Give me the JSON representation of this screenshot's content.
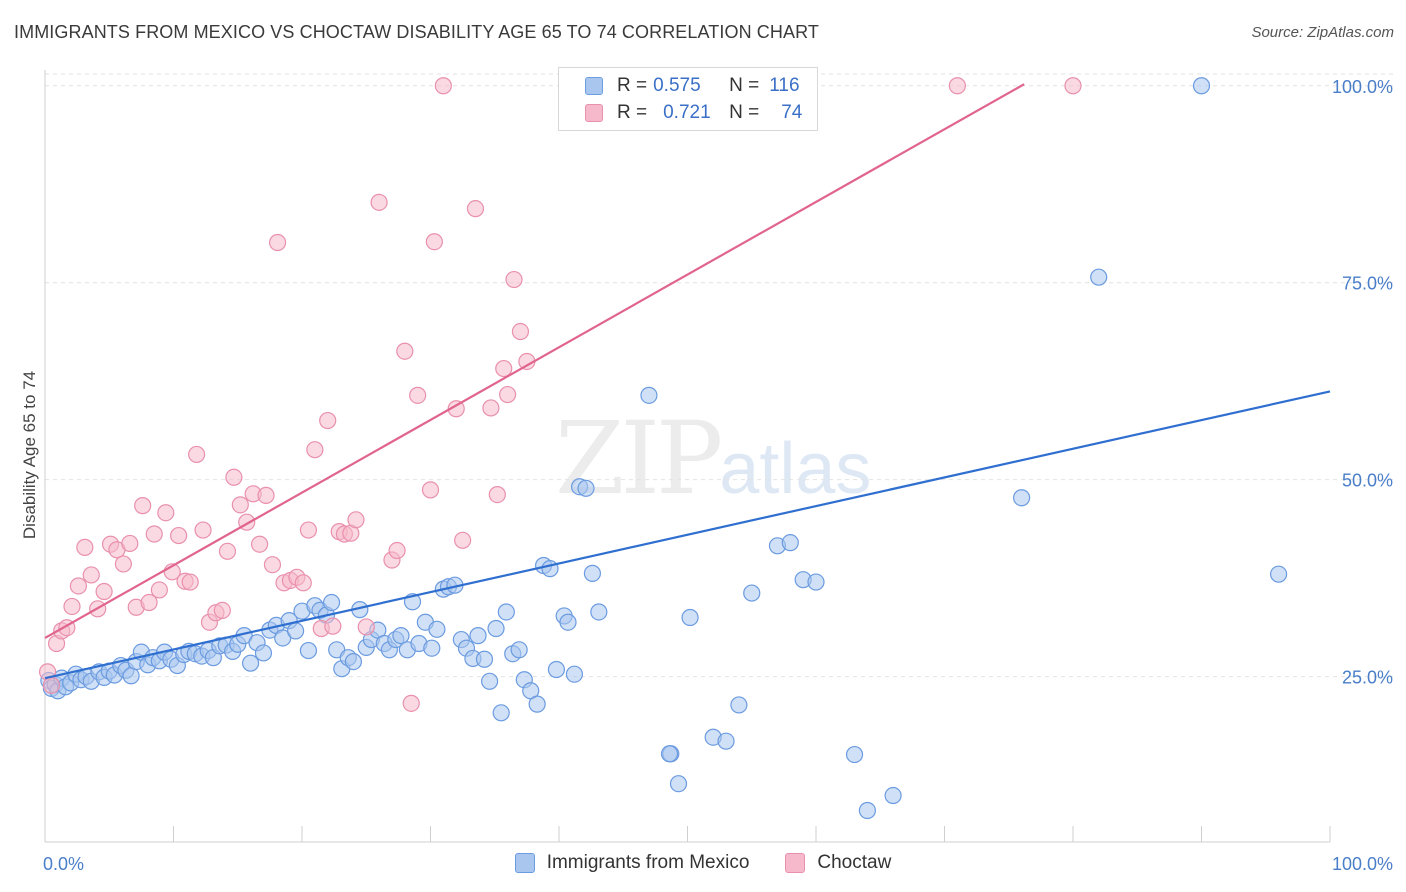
{
  "header": {
    "title": "IMMIGRANTS FROM MEXICO VS CHOCTAW DISABILITY AGE 65 TO 74 CORRELATION CHART",
    "source": "Source: ZipAtlas.com"
  },
  "watermark": {
    "zip": "ZIP",
    "atlas": "atlas"
  },
  "colors": {
    "mexico_fill": "#a9c6ef",
    "mexico_stroke": "#6b9be0",
    "mexico_line": "#2f6fcf",
    "choctaw_fill": "#f5b9cb",
    "choctaw_stroke": "#e990ad",
    "choctaw_line": "#e0648e",
    "tick_label": "#4a7ec9"
  },
  "legend_top": [
    {
      "r_label": "R =",
      "r_value": "0.575",
      "n_label": "N =",
      "n_value": "116"
    },
    {
      "r_label": "R =",
      "r_value": "0.721",
      "n_label": "N =",
      "n_value": "74"
    }
  ],
  "legend_bottom": [
    "Immigrants from Mexico",
    "Choctaw"
  ],
  "chart_data": {
    "type": "scatter",
    "title": "IMMIGRANTS FROM MEXICO VS CHOCTAW DISABILITY AGE 65 TO 74 CORRELATION CHART",
    "xlabel": "",
    "ylabel": "Disability Age 65 to 74",
    "xlim": [
      0,
      100
    ],
    "ylim": [
      4,
      102
    ],
    "x_tick_labels": [
      "0.0%",
      "100.0%"
    ],
    "y_ticks": [
      25,
      50,
      75,
      100
    ],
    "y_tick_labels": [
      "25.0%",
      "50.0%",
      "75.0%",
      "100.0%"
    ],
    "grid": "horizontal dashed",
    "legend_placement": "bottom-center",
    "series": [
      {
        "name": "Immigrants from Mexico",
        "R": 0.575,
        "N": 116,
        "trend": {
          "x": [
            0,
            100
          ],
          "y": [
            24.8,
            61.2
          ]
        },
        "points": [
          [
            0.3,
            24.5
          ],
          [
            0.5,
            23.5
          ],
          [
            0.8,
            24.0
          ],
          [
            1.0,
            23.2
          ],
          [
            1.3,
            24.8
          ],
          [
            1.6,
            23.7
          ],
          [
            2.0,
            24.2
          ],
          [
            2.4,
            25.3
          ],
          [
            2.8,
            24.6
          ],
          [
            3.2,
            25.0
          ],
          [
            3.6,
            24.4
          ],
          [
            4.2,
            25.6
          ],
          [
            4.6,
            24.9
          ],
          [
            5.0,
            25.7
          ],
          [
            5.4,
            25.2
          ],
          [
            5.9,
            26.4
          ],
          [
            6.3,
            25.8
          ],
          [
            6.7,
            25.1
          ],
          [
            7.1,
            26.9
          ],
          [
            7.5,
            28.1
          ],
          [
            8.0,
            26.5
          ],
          [
            8.4,
            27.4
          ],
          [
            8.9,
            27.0
          ],
          [
            9.3,
            28.1
          ],
          [
            9.8,
            27.2
          ],
          [
            10.3,
            26.4
          ],
          [
            10.8,
            27.8
          ],
          [
            11.2,
            28.2
          ],
          [
            11.7,
            27.9
          ],
          [
            12.2,
            27.6
          ],
          [
            12.7,
            28.3
          ],
          [
            13.1,
            27.4
          ],
          [
            13.6,
            28.9
          ],
          [
            14.1,
            29.0
          ],
          [
            14.6,
            28.2
          ],
          [
            15.0,
            29.1
          ],
          [
            15.5,
            30.2
          ],
          [
            16.0,
            26.7
          ],
          [
            16.5,
            29.3
          ],
          [
            17.0,
            28.0
          ],
          [
            17.5,
            30.9
          ],
          [
            18.0,
            31.5
          ],
          [
            18.5,
            29.9
          ],
          [
            19.0,
            32.1
          ],
          [
            19.5,
            30.8
          ],
          [
            20.0,
            33.3
          ],
          [
            20.5,
            28.3
          ],
          [
            21.0,
            34.0
          ],
          [
            21.4,
            33.4
          ],
          [
            21.9,
            32.8
          ],
          [
            22.3,
            34.4
          ],
          [
            22.7,
            28.4
          ],
          [
            23.1,
            26.0
          ],
          [
            23.6,
            27.4
          ],
          [
            24.0,
            26.9
          ],
          [
            24.5,
            33.5
          ],
          [
            25.0,
            28.7
          ],
          [
            25.4,
            29.7
          ],
          [
            25.9,
            30.9
          ],
          [
            26.4,
            29.2
          ],
          [
            26.8,
            28.4
          ],
          [
            27.3,
            29.7
          ],
          [
            27.7,
            30.2
          ],
          [
            28.2,
            28.4
          ],
          [
            28.6,
            34.5
          ],
          [
            29.1,
            29.2
          ],
          [
            29.6,
            31.9
          ],
          [
            30.1,
            28.6
          ],
          [
            30.5,
            31.0
          ],
          [
            31.0,
            36.1
          ],
          [
            31.4,
            36.4
          ],
          [
            31.9,
            36.6
          ],
          [
            32.4,
            29.7
          ],
          [
            32.8,
            28.6
          ],
          [
            33.3,
            27.3
          ],
          [
            33.7,
            30.2
          ],
          [
            34.2,
            27.2
          ],
          [
            34.6,
            24.4
          ],
          [
            35.1,
            31.1
          ],
          [
            35.5,
            20.4
          ],
          [
            35.9,
            33.2
          ],
          [
            36.4,
            27.9
          ],
          [
            36.9,
            28.4
          ],
          [
            37.3,
            24.6
          ],
          [
            37.8,
            23.2
          ],
          [
            38.3,
            21.5
          ],
          [
            38.8,
            39.1
          ],
          [
            39.3,
            38.7
          ],
          [
            39.8,
            25.9
          ],
          [
            40.4,
            32.7
          ],
          [
            40.7,
            31.9
          ],
          [
            41.2,
            25.3
          ],
          [
            41.6,
            49.1
          ],
          [
            42.1,
            48.9
          ],
          [
            42.6,
            38.1
          ],
          [
            43.1,
            33.2
          ],
          [
            47.0,
            60.7
          ],
          [
            48.7,
            15.2
          ],
          [
            48.6,
            15.2
          ],
          [
            49.3,
            11.4
          ],
          [
            50.2,
            32.5
          ],
          [
            52.0,
            17.3
          ],
          [
            53.0,
            16.8
          ],
          [
            54.0,
            21.4
          ],
          [
            55.0,
            35.6
          ],
          [
            57.0,
            41.6
          ],
          [
            58.0,
            42.0
          ],
          [
            59.0,
            37.3
          ],
          [
            60.0,
            37.0
          ],
          [
            63.0,
            15.1
          ],
          [
            64.0,
            8.0
          ],
          [
            66.0,
            9.9
          ],
          [
            76.0,
            47.7
          ],
          [
            82.0,
            75.7
          ],
          [
            90.0,
            100.0
          ],
          [
            96.0,
            38.0
          ]
        ]
      },
      {
        "name": "Choctaw",
        "R": 0.721,
        "N": 74,
        "trend": {
          "x": [
            0,
            76.2
          ],
          "y": [
            29.9,
            100.2
          ]
        },
        "points": [
          [
            0.2,
            25.6
          ],
          [
            0.5,
            23.9
          ],
          [
            0.9,
            29.2
          ],
          [
            1.3,
            30.8
          ],
          [
            1.7,
            31.2
          ],
          [
            2.1,
            33.9
          ],
          [
            2.6,
            36.5
          ],
          [
            3.1,
            41.4
          ],
          [
            3.6,
            37.9
          ],
          [
            4.1,
            33.6
          ],
          [
            4.6,
            35.8
          ],
          [
            5.1,
            41.8
          ],
          [
            5.6,
            41.1
          ],
          [
            6.1,
            39.3
          ],
          [
            6.6,
            41.9
          ],
          [
            7.1,
            33.8
          ],
          [
            7.6,
            46.7
          ],
          [
            8.1,
            34.4
          ],
          [
            8.5,
            43.1
          ],
          [
            8.9,
            36.0
          ],
          [
            9.4,
            45.8
          ],
          [
            9.9,
            38.3
          ],
          [
            10.4,
            42.9
          ],
          [
            10.9,
            37.1
          ],
          [
            11.3,
            37.0
          ],
          [
            11.8,
            53.2
          ],
          [
            12.3,
            43.6
          ],
          [
            12.8,
            31.9
          ],
          [
            13.3,
            33.1
          ],
          [
            13.8,
            33.4
          ],
          [
            14.2,
            40.9
          ],
          [
            14.7,
            50.3
          ],
          [
            15.2,
            46.8
          ],
          [
            15.7,
            44.6
          ],
          [
            16.2,
            48.2
          ],
          [
            16.7,
            41.8
          ],
          [
            17.2,
            48.0
          ],
          [
            17.7,
            39.2
          ],
          [
            18.1,
            80.1
          ],
          [
            18.6,
            36.9
          ],
          [
            19.1,
            37.2
          ],
          [
            19.6,
            37.6
          ],
          [
            20.1,
            36.9
          ],
          [
            20.5,
            43.6
          ],
          [
            21.0,
            53.8
          ],
          [
            21.5,
            31.1
          ],
          [
            22.0,
            57.5
          ],
          [
            22.4,
            31.4
          ],
          [
            22.9,
            43.4
          ],
          [
            23.3,
            43.1
          ],
          [
            23.8,
            43.2
          ],
          [
            24.2,
            44.9
          ],
          [
            25.0,
            31.3
          ],
          [
            26.0,
            85.2
          ],
          [
            27.0,
            39.8
          ],
          [
            27.4,
            41.0
          ],
          [
            28.0,
            66.3
          ],
          [
            28.5,
            21.6
          ],
          [
            29.0,
            60.7
          ],
          [
            30.0,
            48.7
          ],
          [
            30.3,
            80.2
          ],
          [
            31.0,
            100.0
          ],
          [
            32.0,
            59.0
          ],
          [
            32.5,
            42.3
          ],
          [
            33.5,
            84.4
          ],
          [
            34.7,
            59.1
          ],
          [
            35.2,
            48.1
          ],
          [
            35.7,
            64.1
          ],
          [
            36.0,
            60.8
          ],
          [
            36.5,
            75.4
          ],
          [
            37.0,
            68.8
          ],
          [
            37.5,
            65.0
          ],
          [
            71.0,
            100.0
          ],
          [
            80.0,
            100.0
          ]
        ]
      }
    ]
  }
}
